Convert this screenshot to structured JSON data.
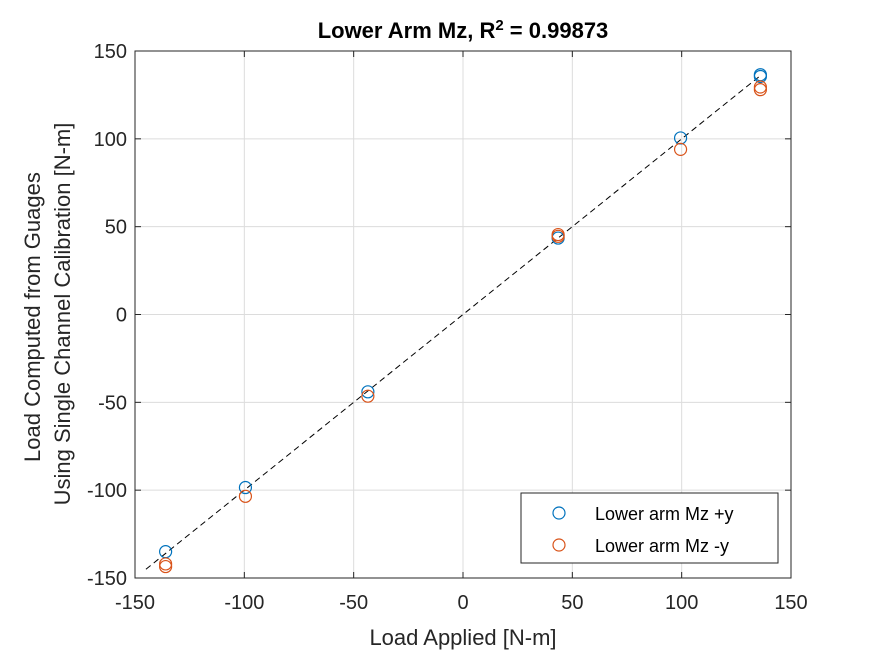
{
  "chart_data": {
    "type": "scatter",
    "title": "Lower Arm Mz, R",
    "title_superscript": "2",
    "title_suffix": " = 0.99873",
    "xlabel": "Load Applied [N-m]",
    "ylabel_lines": [
      "Load Computed from Guages",
      "Using Single Channel Calibration [N-m]"
    ],
    "xlim": [
      -150,
      150
    ],
    "ylim": [
      -150,
      150
    ],
    "xticks": [
      -150,
      -100,
      -50,
      0,
      50,
      100,
      150
    ],
    "yticks": [
      -150,
      -100,
      -50,
      0,
      50,
      100,
      150
    ],
    "xtick_labels": [
      "-150",
      "-100",
      "-50",
      "0",
      "50",
      "100",
      "150"
    ],
    "ytick_labels": [
      "-150",
      "-100",
      "-50",
      "0",
      "50",
      "100",
      "150"
    ],
    "grid": true,
    "legend_position": "bottom-right",
    "reference_line": {
      "style": "dashed",
      "color": "#000000",
      "x": [
        -145,
        136
      ],
      "y": [
        -145,
        136
      ]
    },
    "series": [
      {
        "name": "Lower arm Mz +y",
        "color": "#0072BD",
        "marker": "circle-open",
        "x": [
          -136,
          -99.5,
          -43.5,
          43.5,
          99.5,
          136,
          136
        ],
        "y": [
          -135,
          -98.5,
          -44,
          43.5,
          100.5,
          135.5,
          136.5
        ]
      },
      {
        "name": "Lower arm Mz -y",
        "color": "#D95319",
        "marker": "circle-open",
        "x": [
          -136,
          -136,
          -99.5,
          -43.5,
          43.5,
          43.5,
          99.5,
          136,
          136
        ],
        "y": [
          -142,
          -143.5,
          -103.5,
          -46.5,
          44.5,
          45.5,
          94,
          128,
          129.5
        ]
      }
    ]
  }
}
